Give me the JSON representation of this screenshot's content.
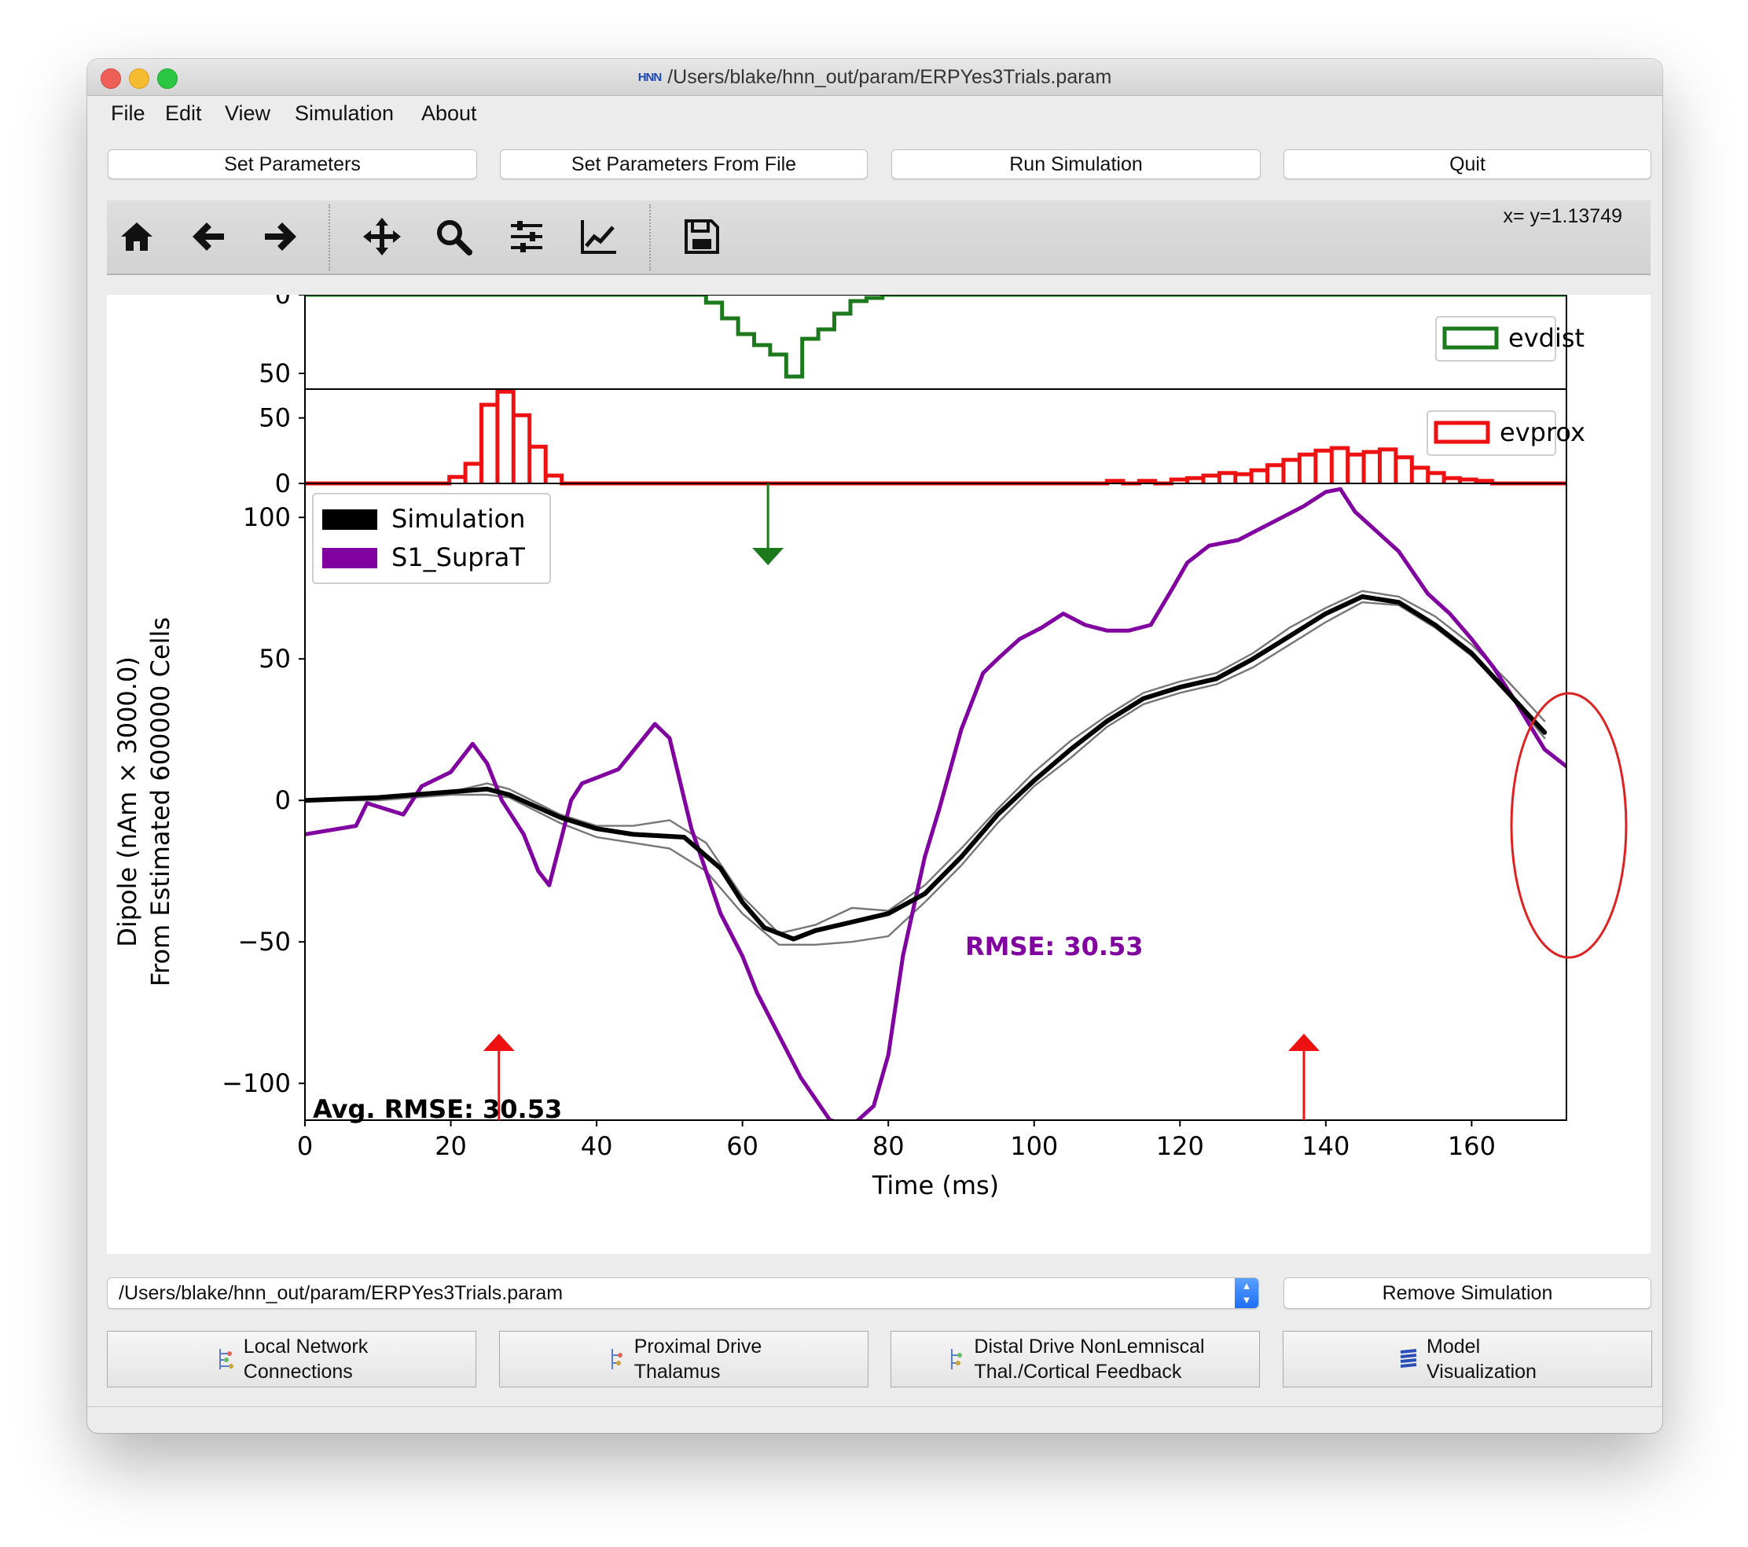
{
  "window": {
    "title": "/Users/blake/hnn_out/param/ERPYes3Trials.param",
    "app_icon_label": "HNN"
  },
  "menu": [
    "File",
    "Edit",
    "View",
    "Simulation",
    "About"
  ],
  "actions": [
    "Set Parameters",
    "Set Parameters From File",
    "Run Simulation",
    "Quit"
  ],
  "toolbar": {
    "icons": [
      "home-icon",
      "back-arrow-icon",
      "forward-arrow-icon",
      "pan-icon",
      "zoom-icon",
      "configure-subplots-icon",
      "edit-axes-icon",
      "save-icon"
    ],
    "coords": "x= y=1.13749"
  },
  "sim_selector": {
    "value": "/Users/blake/hnn_out/param/ERPYes3Trials.param"
  },
  "remove_button": "Remove Simulation",
  "bottom_buttons": [
    {
      "line1": "Local Network",
      "line2": "Connections",
      "icon": "network-icon"
    },
    {
      "line1": "Proximal Drive",
      "line2": "Thalamus",
      "icon": "drive-icon"
    },
    {
      "line1": "Distal Drive NonLemniscal",
      "line2": "Thal./Cortical Feedback",
      "icon": "drive-icon"
    },
    {
      "line1": "Model",
      "line2": "Visualization",
      "icon": "model-icon"
    }
  ],
  "chart_data": [
    {
      "type": "bar",
      "legend": "evdist",
      "legend_position": "top-right",
      "color": "#1c7a1c",
      "orientation": "inverted",
      "ylim": [
        0,
        60
      ],
      "yticks": [
        "0",
        "50"
      ],
      "bin_width": 2.2,
      "x": [
        55,
        57.2,
        59.4,
        61.6,
        63.8,
        66,
        68.2,
        70.4,
        72.6,
        74.8,
        77
      ],
      "values": [
        5,
        15,
        25,
        32,
        38,
        52,
        28,
        22,
        12,
        4,
        2
      ]
    },
    {
      "type": "bar",
      "legend": "evprox",
      "legend_position": "top-right",
      "color": "#ee1111",
      "ylim": [
        0,
        72
      ],
      "yticks": [
        "50",
        "0"
      ],
      "bin_width": 2.2,
      "x": [
        19.8,
        22,
        24.2,
        26.4,
        28.6,
        30.8,
        33,
        110,
        114.4,
        118.8,
        121,
        123.2,
        125.4,
        127.6,
        129.8,
        132,
        134.2,
        136.4,
        138.6,
        140.8,
        143,
        145.2,
        147.4,
        149.6,
        151.8,
        154,
        156.2,
        158.4,
        160.6
      ],
      "values": [
        5,
        15,
        60,
        70,
        52,
        28,
        6,
        2,
        2,
        3,
        4,
        6,
        8,
        7,
        10,
        14,
        18,
        22,
        25,
        27,
        22,
        24,
        26,
        20,
        12,
        8,
        4,
        3,
        2
      ]
    },
    {
      "type": "line",
      "xlabel": "Time (ms)",
      "ylabel": "Dipole (nAm × 3000.0)",
      "ylabel2": "From Estimated 600000 Cells",
      "xlim": [
        0,
        173
      ],
      "ylim": [
        -113,
        112
      ],
      "xticks": [
        "0",
        "20",
        "40",
        "60",
        "80",
        "100",
        "120",
        "140",
        "160"
      ],
      "yticks": [
        "100",
        "50",
        "0",
        "−50",
        "−100"
      ],
      "legend_position": "top-left",
      "annotation": "RMSE: 30.53",
      "avg_rmse": "Avg. RMSE: 30.53",
      "series": [
        {
          "name": "Simulation",
          "color": "#000000",
          "width": 3,
          "x": [
            0,
            10,
            15,
            20,
            25,
            28,
            35,
            40,
            45,
            52,
            57,
            60,
            63,
            67,
            70,
            75,
            80,
            85,
            90,
            95,
            100,
            105,
            110,
            115,
            120,
            125,
            130,
            135,
            140,
            145,
            150,
            155,
            160,
            165,
            170
          ],
          "y": [
            0,
            1,
            2,
            3,
            4,
            2,
            -6,
            -10,
            -12,
            -13,
            -24,
            -36,
            -45,
            -49,
            -46,
            -43,
            -40,
            -33,
            -20,
            -5,
            7,
            18,
            28,
            36,
            40,
            43,
            50,
            58,
            66,
            72,
            70,
            62,
            52,
            38,
            24
          ]
        },
        {
          "name": "",
          "color": "#777777",
          "width": 1.2,
          "x": [
            0,
            10,
            20,
            25,
            28,
            35,
            40,
            45,
            50,
            55,
            60,
            65,
            70,
            75,
            80,
            85,
            90,
            95,
            100,
            105,
            110,
            115,
            120,
            125,
            130,
            135,
            140,
            145,
            150,
            155,
            160,
            165,
            170
          ],
          "y": [
            0,
            1,
            3,
            6,
            4,
            -5,
            -9,
            -9,
            -7,
            -15,
            -34,
            -47,
            -44,
            -38,
            -39,
            -30,
            -17,
            -3,
            10,
            21,
            30,
            38,
            42,
            45,
            52,
            61,
            68,
            74,
            72,
            65,
            55,
            42,
            28
          ]
        },
        {
          "name": "",
          "color": "#777777",
          "width": 1.2,
          "x": [
            0,
            10,
            20,
            25,
            28,
            35,
            40,
            45,
            50,
            55,
            60,
            65,
            70,
            75,
            80,
            85,
            90,
            95,
            100,
            105,
            110,
            115,
            120,
            125,
            130,
            135,
            140,
            145,
            150,
            155,
            160,
            165,
            170
          ],
          "y": [
            0,
            0,
            2,
            2,
            1,
            -8,
            -13,
            -15,
            -17,
            -25,
            -40,
            -51,
            -51,
            -50,
            -48,
            -36,
            -23,
            -8,
            5,
            15,
            26,
            34,
            38,
            41,
            47,
            55,
            63,
            70,
            69,
            61,
            51,
            38,
            22
          ]
        },
        {
          "name": "S1_SupraT",
          "color": "#8000a0",
          "width": 2.5,
          "x": [
            0,
            7,
            8.5,
            13.5,
            16,
            20,
            23,
            25,
            27,
            30,
            32,
            33.5,
            36.5,
            38,
            40,
            43,
            48,
            50,
            53,
            55,
            57,
            60,
            62,
            65,
            68,
            72,
            75,
            78,
            80,
            82,
            85,
            87,
            90,
            93,
            95,
            98,
            101,
            104,
            107,
            110,
            113,
            116,
            119,
            121,
            124,
            128,
            131,
            134,
            137,
            140,
            142,
            144,
            147,
            150,
            154,
            157,
            160,
            163,
            166,
            170,
            173
          ],
          "y": [
            -12,
            -9,
            -1,
            -5,
            5,
            10,
            20,
            13,
            0,
            -12,
            -25,
            -30,
            0,
            6,
            8,
            11,
            27,
            22,
            -10,
            -25,
            -40,
            -55,
            -68,
            -83,
            -98,
            -113,
            -115,
            -108,
            -90,
            -55,
            -20,
            -3,
            25,
            45,
            50,
            57,
            61,
            66,
            62,
            60,
            60,
            62,
            75,
            84,
            90,
            92,
            96,
            100,
            104,
            109,
            110,
            102,
            95,
            88,
            73,
            66,
            57,
            47,
            35,
            18,
            12
          ]
        }
      ],
      "stim_markers": [
        {
          "x": 63.5,
          "color": "#1c7a1c",
          "direction": "down"
        },
        {
          "x": 26.6,
          "color": "#ee1111",
          "direction": "up"
        },
        {
          "x": 137,
          "color": "#ee1111",
          "direction": "up"
        }
      ],
      "highlight": {
        "shape": "ellipse",
        "color": "#dd2222"
      }
    }
  ]
}
